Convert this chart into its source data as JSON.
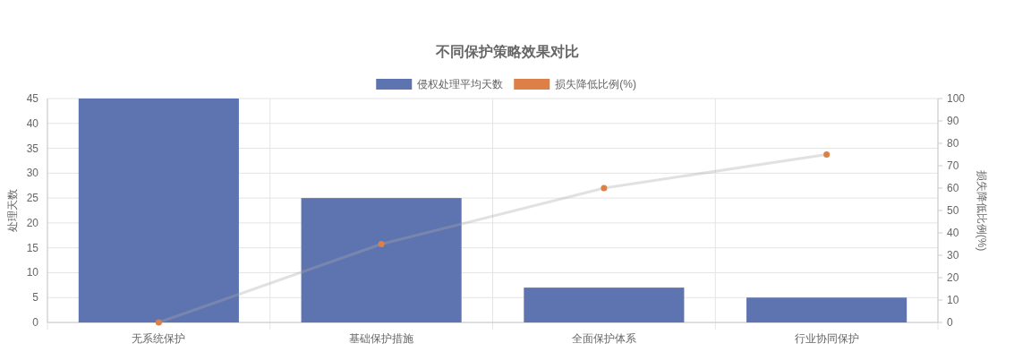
{
  "chart_data": {
    "type": "bar",
    "title": "不同保护策略效果对比",
    "categories": [
      "无系统保护",
      "基础保护措施",
      "全面保护体系",
      "行业协同保护"
    ],
    "series": [
      {
        "name": "侵权处理平均天数",
        "color": "#5e74b0",
        "values": [
          45,
          25,
          7,
          5
        ]
      },
      {
        "name": "损失降低比例(%)",
        "type": "line",
        "axis": "y2",
        "color": "#dd8047",
        "values": [
          0,
          35,
          60,
          75
        ]
      }
    ],
    "ylabel": "处理天数",
    "y2label": "损失降低比例(%)",
    "ylim": [
      0,
      45
    ],
    "yticks": [
      0,
      5,
      10,
      15,
      20,
      25,
      30,
      35,
      40,
      45
    ],
    "y2lim": [
      0,
      100
    ],
    "y2ticks": [
      0,
      10,
      20,
      30,
      40,
      50,
      60,
      70,
      80,
      90,
      100
    ],
    "grid": true,
    "legend": "top",
    "marker": "circle"
  }
}
